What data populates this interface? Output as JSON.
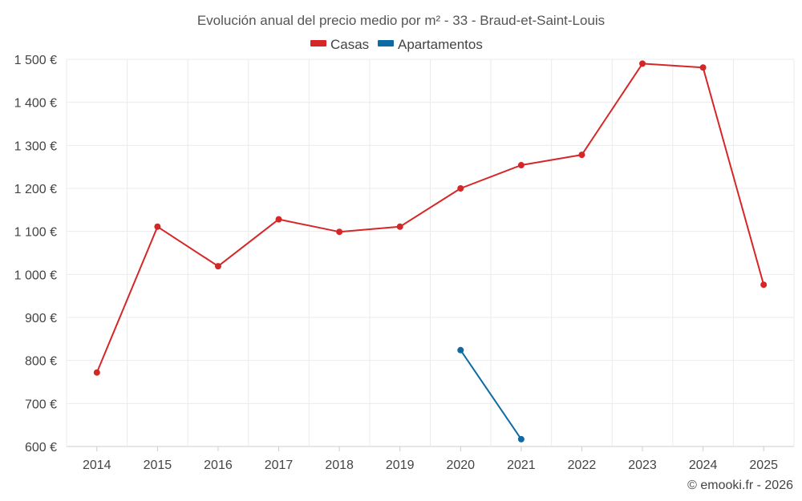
{
  "chart_data": {
    "type": "line",
    "title": "Evolución anual del precio medio por m² - 33 - Braud-et-Saint-Louis",
    "x": [
      "2014",
      "2015",
      "2016",
      "2017",
      "2018",
      "2019",
      "2020",
      "2021",
      "2022",
      "2023",
      "2024",
      "2025"
    ],
    "y_ticks": [
      "600 €",
      "700 €",
      "800 €",
      "900 €",
      "1 000 €",
      "1 100 €",
      "1 200 €",
      "1 300 €",
      "1 400 €",
      "1 500 €"
    ],
    "ylim": [
      600,
      1500
    ],
    "grid": true,
    "legend_position": "top-center",
    "series": [
      {
        "name": "Casas",
        "color": "#d62728",
        "values": [
          772,
          1111,
          1019,
          1128,
          1099,
          1111,
          1200,
          1254,
          1278,
          1490,
          1481,
          976
        ]
      },
      {
        "name": "Apartamentos",
        "color": "#0e6aa3",
        "values": [
          null,
          null,
          null,
          null,
          null,
          null,
          824,
          617,
          null,
          null,
          null,
          null
        ]
      }
    ],
    "credit": "© emooki.fr - 2026"
  }
}
